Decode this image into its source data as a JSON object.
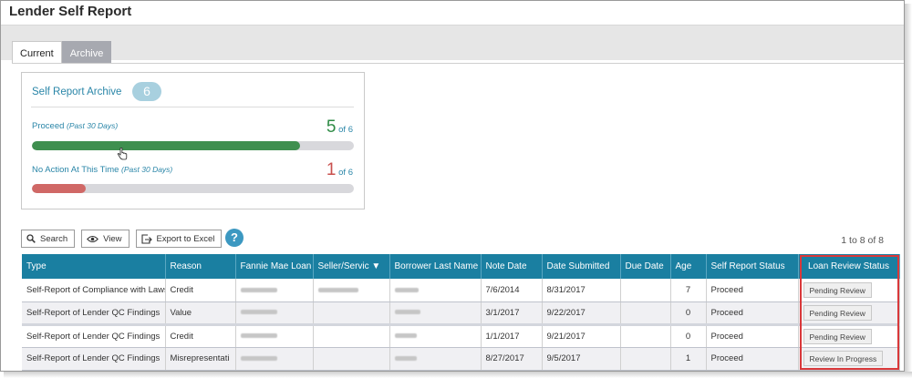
{
  "app": {
    "title": "Lender Self Report"
  },
  "tabs": [
    {
      "label": "Current",
      "active": true
    },
    {
      "label": "Archive",
      "active": false
    }
  ],
  "archive_card": {
    "title": "Self Report Archive",
    "count": "6",
    "metrics": [
      {
        "label": "Proceed",
        "period": "(Past 30 Days)",
        "value": "5",
        "of_text": "of",
        "total": "6",
        "fraction": 0.833,
        "color": "#3f8f4f"
      },
      {
        "label": "No Action At This Time",
        "period": "(Past 30 Days)",
        "value": "1",
        "of_text": "of",
        "total": "6",
        "fraction": 0.167,
        "color": "#d06866"
      }
    ]
  },
  "toolbar": {
    "search_label": "Search",
    "view_label": "View",
    "export_label": "Export to Excel",
    "help_glyph": "?"
  },
  "pager": {
    "text": "1 to 8 of 8"
  },
  "table": {
    "columns": [
      "Type",
      "Reason",
      "Fannie Mae Loan",
      "Seller/Servic",
      "Borrower Last Name",
      "Note Date",
      "Date Submitted",
      "Due Date",
      "Age",
      "Self Report Status",
      "Loan Review Status"
    ],
    "sort_indicator": "▼",
    "rows": [
      {
        "type": "Self-Report of Compliance with Laws",
        "reason": "Credit",
        "note_date": "7/6/2014",
        "date_submitted": "8/31/2017",
        "due_date": "",
        "age": "7",
        "self_report_status": "Proceed",
        "loan_review_status": "Pending Review"
      },
      {
        "type": "Self-Report of Lender QC Findings",
        "reason": "Value",
        "note_date": "3/1/2017",
        "date_submitted": "9/22/2017",
        "due_date": "",
        "age": "0",
        "self_report_status": "Proceed",
        "loan_review_status": "Pending Review"
      },
      {
        "type": "Self-Report of Lender QC Findings",
        "reason": "Credit",
        "note_date": "1/1/2017",
        "date_submitted": "9/21/2017",
        "due_date": "",
        "age": "0",
        "self_report_status": "Proceed",
        "loan_review_status": "Pending Review"
      },
      {
        "type": "Self-Report of Lender QC Findings",
        "reason": "Misrepresentati",
        "note_date": "8/27/2017",
        "date_submitted": "9/5/2017",
        "due_date": "",
        "age": "1",
        "self_report_status": "Proceed",
        "loan_review_status": "Review In Progress"
      }
    ]
  },
  "colors": {
    "header_bg": "#1a7fa1",
    "accent": "#2a86a8",
    "highlight_border": "#d9383a"
  }
}
